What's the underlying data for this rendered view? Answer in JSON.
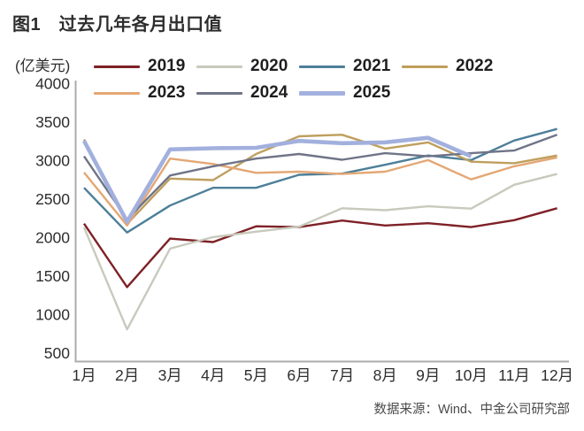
{
  "title": "图1　过去几年各月出口值",
  "unit_label": "(亿美元)",
  "source": "数据来源：Wind、中金公司研究部",
  "colors": {
    "axis": "#ababab",
    "tick_text": "#2e2e2e",
    "title_text": "#2d2d2d"
  },
  "chart_data": {
    "type": "line",
    "title": "图1 过去几年各月出口值",
    "ylabel": "(亿美元)",
    "xlabel": "",
    "ylim": [
      500,
      4000
    ],
    "ytick_step": 500,
    "yticks": [
      4000,
      3500,
      3000,
      2500,
      2000,
      1500,
      1000,
      500
    ],
    "grid": false,
    "legend_position": "top",
    "categories": [
      "1月",
      "2月",
      "3月",
      "4月",
      "5月",
      "6月",
      "7月",
      "8月",
      "9月",
      "10月",
      "11月",
      "12月"
    ],
    "series": [
      {
        "name": "2019",
        "color": "#7e2127",
        "line_width": 2.4,
        "values": [
          2175,
          1350,
          1980,
          1935,
          2140,
          2130,
          2215,
          2150,
          2180,
          2130,
          2220,
          2375
        ]
      },
      {
        "name": "2020",
        "color": "#c7cabc",
        "line_width": 2.4,
        "values": [
          2125,
          800,
          1850,
          2000,
          2070,
          2135,
          2375,
          2350,
          2400,
          2370,
          2680,
          2820
        ]
      },
      {
        "name": "2021",
        "color": "#4d7f99",
        "line_width": 2.4,
        "values": [
          2640,
          2060,
          2410,
          2640,
          2640,
          2810,
          2825,
          2940,
          3060,
          3000,
          3255,
          3405
        ]
      },
      {
        "name": "2022",
        "color": "#bf9f5d",
        "line_width": 2.4,
        "values": [
          3270,
          2170,
          2760,
          2740,
          3080,
          3310,
          3330,
          3150,
          3230,
          2980,
          2960,
          3060
        ]
      },
      {
        "name": "2023",
        "color": "#e4a774",
        "line_width": 2.4,
        "values": [
          2840,
          2150,
          3020,
          2950,
          2835,
          2850,
          2820,
          2850,
          3000,
          2750,
          2920,
          3035
        ]
      },
      {
        "name": "2024",
        "color": "#6f7487",
        "line_width": 2.4,
        "values": [
          3050,
          2230,
          2800,
          2920,
          3020,
          3080,
          3005,
          3090,
          3050,
          3090,
          3125,
          3330
        ]
      },
      {
        "name": "2025",
        "color": "#a2b0dd",
        "line_width": 4.6,
        "values": [
          3250,
          2200,
          3140,
          3155,
          3160,
          3250,
          3220,
          3230,
          3290,
          3050
        ]
      }
    ]
  }
}
